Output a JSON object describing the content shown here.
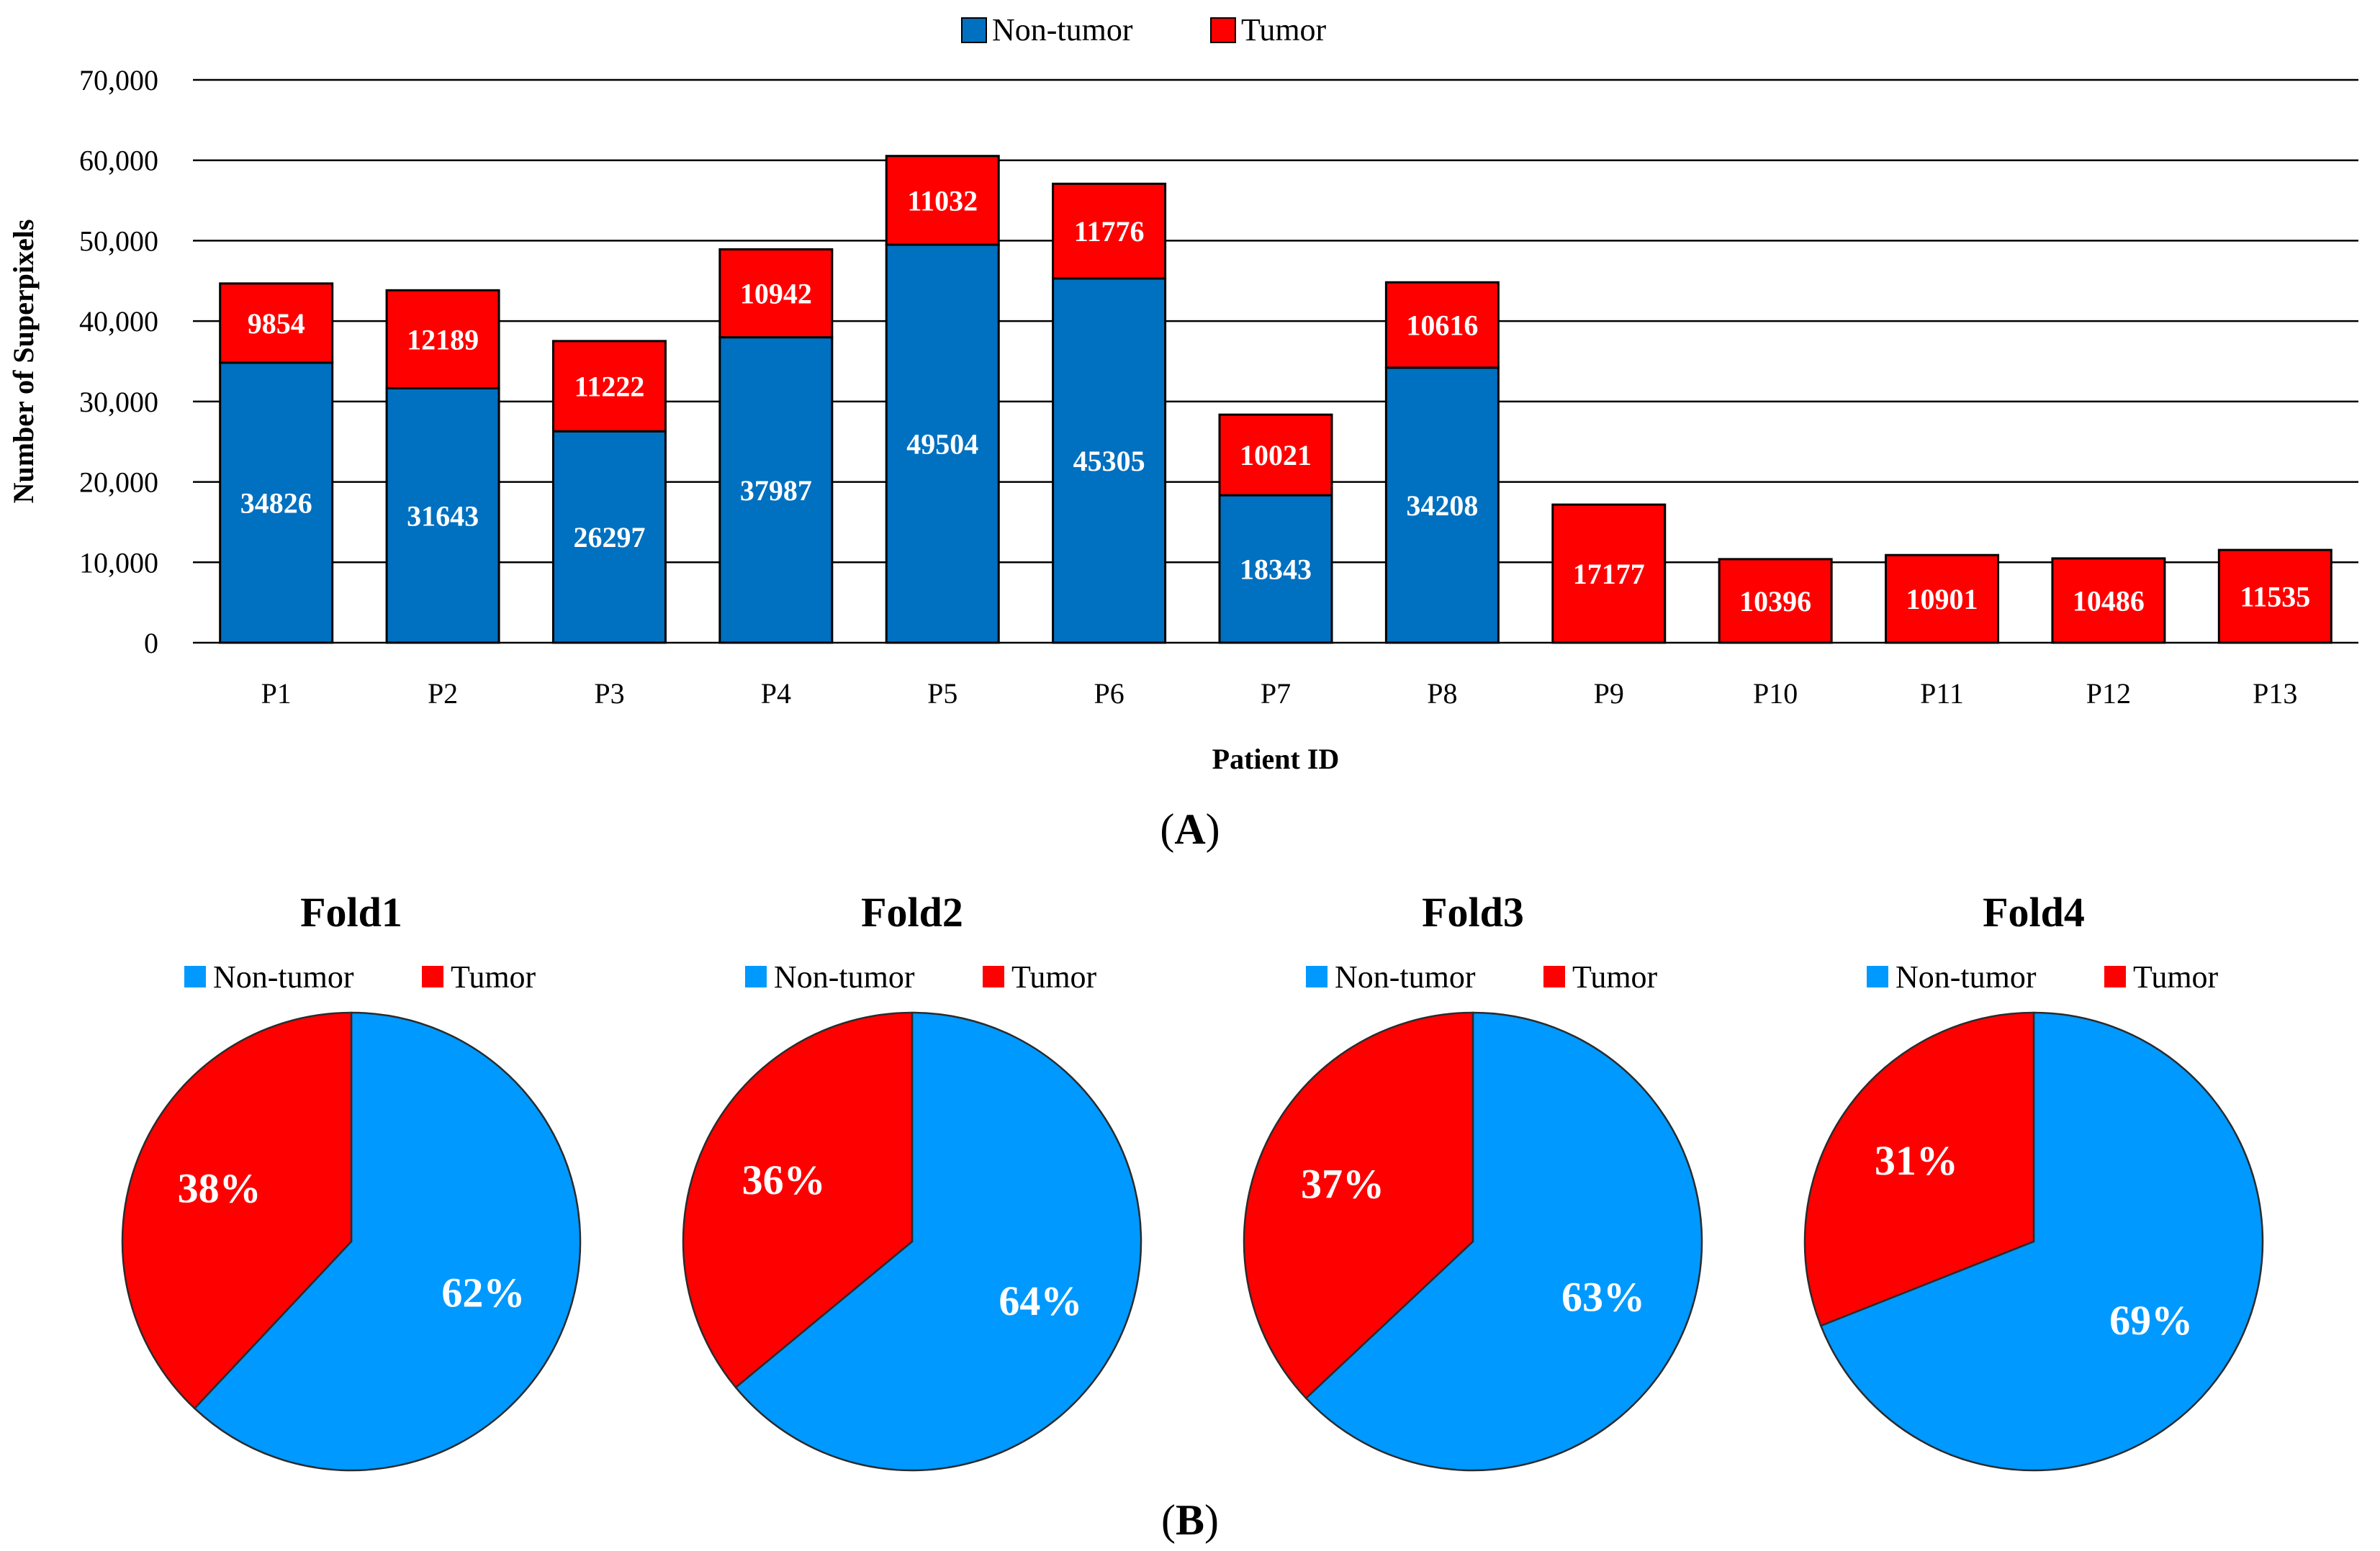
{
  "colors": {
    "non_tumor_bar": "#0070C0",
    "tumor": "#FF0000",
    "non_tumor_pie": "#0099FF",
    "grid": "#000000",
    "text": "#000000",
    "label_on_mark": "#FFFFFF"
  },
  "panel_a": {
    "caption_open": "(",
    "caption_letter": "A",
    "caption_close": ")"
  },
  "panel_b": {
    "caption_open": "(",
    "caption_letter": "B",
    "caption_close": ")"
  },
  "chart_data": [
    {
      "type": "bar",
      "stacked": true,
      "title": "",
      "xlabel": "Patient ID",
      "ylabel": "Number of Superpixels",
      "ylim": [
        0,
        70000
      ],
      "yticks": [
        0,
        10000,
        20000,
        30000,
        40000,
        50000,
        60000,
        70000
      ],
      "ytick_labels": [
        "0",
        "10,000",
        "20,000",
        "30,000",
        "40,000",
        "50,000",
        "60,000",
        "70,000"
      ],
      "grid": true,
      "legend": {
        "placement": "top-center",
        "entries": [
          "Non-tumor",
          "Tumor"
        ]
      },
      "categories": [
        "P1",
        "P2",
        "P3",
        "P4",
        "P5",
        "P6",
        "P7",
        "P8",
        "P9",
        "P10",
        "P11",
        "P12",
        "P13"
      ],
      "series": [
        {
          "name": "Non-tumor",
          "values": [
            34826,
            31643,
            26297,
            37987,
            49504,
            45305,
            18343,
            34208,
            0,
            0,
            0,
            0,
            0
          ]
        },
        {
          "name": "Tumor",
          "values": [
            9854,
            12189,
            11222,
            10942,
            11032,
            11776,
            10021,
            10616,
            17177,
            10396,
            10901,
            10486,
            11535
          ]
        }
      ]
    },
    {
      "type": "pie",
      "title": "Fold1",
      "legend": {
        "placement": "top",
        "entries": [
          "Non-tumor",
          "Tumor"
        ]
      },
      "slices": [
        {
          "name": "Non-tumor",
          "value": 62,
          "label": "62%"
        },
        {
          "name": "Tumor",
          "value": 38,
          "label": "38%"
        }
      ]
    },
    {
      "type": "pie",
      "title": "Fold2",
      "legend": {
        "placement": "top",
        "entries": [
          "Non-tumor",
          "Tumor"
        ]
      },
      "slices": [
        {
          "name": "Non-tumor",
          "value": 64,
          "label": "64%"
        },
        {
          "name": "Tumor",
          "value": 36,
          "label": "36%"
        }
      ]
    },
    {
      "type": "pie",
      "title": "Fold3",
      "legend": {
        "placement": "top",
        "entries": [
          "Non-tumor",
          "Tumor"
        ]
      },
      "slices": [
        {
          "name": "Non-tumor",
          "value": 63,
          "label": "63%"
        },
        {
          "name": "Tumor",
          "value": 37,
          "label": "37%"
        }
      ]
    },
    {
      "type": "pie",
      "title": "Fold4",
      "legend": {
        "placement": "top",
        "entries": [
          "Non-tumor",
          "Tumor"
        ]
      },
      "slices": [
        {
          "name": "Non-tumor",
          "value": 69,
          "label": "69%"
        },
        {
          "name": "Tumor",
          "value": 31,
          "label": "31%"
        }
      ]
    }
  ]
}
